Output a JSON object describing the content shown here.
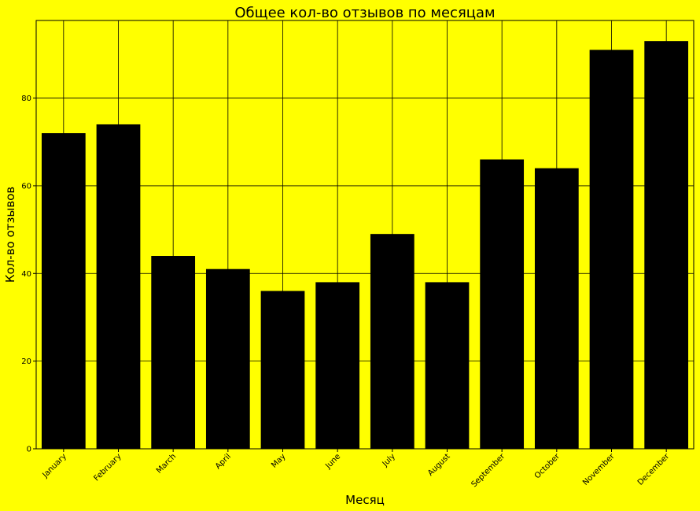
{
  "colors": {
    "background": "#ffff00",
    "bar": "#000000",
    "grid": "#000000",
    "text": "#000000"
  },
  "chart_data": {
    "type": "bar",
    "title": "Общее кол-во отзывов по месяцам",
    "xlabel": "Месяц",
    "ylabel": "Кол-во отзывов",
    "categories": [
      "January",
      "February",
      "March",
      "April",
      "May",
      "June",
      "July",
      "August",
      "September",
      "October",
      "November",
      "December"
    ],
    "values": [
      72,
      74,
      44,
      41,
      36,
      38,
      49,
      38,
      66,
      64,
      91,
      93
    ],
    "ylim": [
      0,
      97.7
    ],
    "yticks": [
      0,
      20,
      40,
      60,
      80
    ],
    "grid": true,
    "x_tick_rotation": "45 degrees"
  }
}
